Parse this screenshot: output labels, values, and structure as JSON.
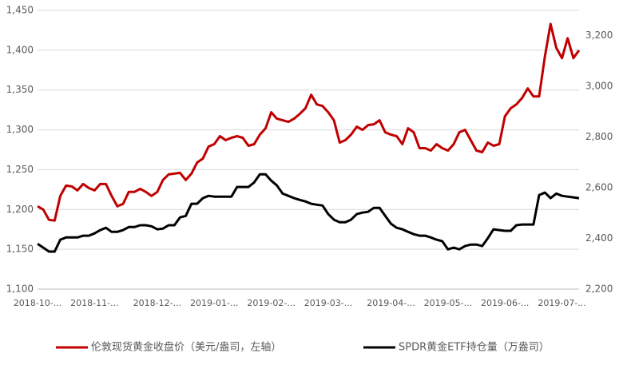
{
  "chart_data": {
    "type": "line",
    "categories": [
      "2018-10-...",
      null,
      null,
      null,
      null,
      null,
      null,
      null,
      null,
      null,
      "2018-11-...",
      null,
      null,
      null,
      null,
      null,
      null,
      null,
      null,
      null,
      null,
      "2018-12-...",
      null,
      null,
      null,
      null,
      null,
      null,
      null,
      null,
      null,
      "2019-01-...",
      null,
      null,
      null,
      null,
      null,
      null,
      null,
      null,
      null,
      "2019-02-...",
      null,
      null,
      null,
      null,
      null,
      null,
      null,
      null,
      null,
      "2019-03-...",
      null,
      null,
      null,
      null,
      null,
      null,
      null,
      null,
      null,
      null,
      "2019-04-...",
      null,
      null,
      null,
      null,
      null,
      null,
      null,
      null,
      null,
      "2019-05-...",
      null,
      null,
      null,
      null,
      null,
      null,
      null,
      null,
      null,
      "2019-06-...",
      null,
      null,
      null,
      null,
      null,
      null,
      null,
      null,
      null,
      "2019-07-...",
      null,
      null,
      null
    ],
    "series": [
      {
        "name": "伦敦现货黄金收盘价（美元/盎司，左轴）",
        "color": "#c00000",
        "values": [
          1204,
          1200,
          1187,
          1186,
          1217,
          1230,
          1229,
          1224,
          1232,
          1227,
          1224,
          1232,
          1232,
          1217,
          1204,
          1207,
          1222,
          1222,
          1226,
          1222,
          1217,
          1222,
          1237,
          1244,
          1245,
          1246,
          1237,
          1245,
          1259,
          1264,
          1279,
          1282,
          1292,
          1287,
          1290,
          1292,
          1290,
          1280,
          1282,
          1294,
          1302,
          1322,
          1314,
          1312,
          1310,
          1314,
          1320,
          1327,
          1344,
          1332,
          1330,
          1322,
          1312,
          1284,
          1287,
          1294,
          1304,
          1300,
          1306,
          1307,
          1312,
          1297,
          1294,
          1292,
          1282,
          1302,
          1297,
          1277,
          1277,
          1274,
          1282,
          1277,
          1274,
          1282,
          1297,
          1300,
          1287,
          1274,
          1272,
          1284,
          1280,
          1282,
          1317,
          1327,
          1332,
          1340,
          1352,
          1342,
          1342,
          1392,
          1433,
          1403,
          1390,
          1415,
          1390,
          1400
        ]
      },
      {
        "name": "SPDR黄金ETF持仓量（万盎司）",
        "color": "#000000",
        "axis": "y2",
        "values": [
          2379,
          2364,
          2348,
          2348,
          2395,
          2404,
          2404,
          2404,
          2411,
          2411,
          2420,
          2433,
          2442,
          2426,
          2426,
          2433,
          2445,
          2445,
          2452,
          2452,
          2448,
          2436,
          2439,
          2452,
          2452,
          2483,
          2489,
          2537,
          2537,
          2559,
          2568,
          2565,
          2565,
          2565,
          2565,
          2603,
          2603,
          2603,
          2621,
          2653,
          2653,
          2628,
          2609,
          2577,
          2568,
          2559,
          2552,
          2546,
          2537,
          2533,
          2530,
          2496,
          2474,
          2464,
          2464,
          2474,
          2496,
          2502,
          2505,
          2521,
          2521,
          2489,
          2458,
          2442,
          2436,
          2426,
          2417,
          2411,
          2411,
          2404,
          2395,
          2389,
          2357,
          2364,
          2357,
          2370,
          2376,
          2376,
          2370,
          2401,
          2436,
          2433,
          2430,
          2430,
          2452,
          2455,
          2455,
          2455,
          2571,
          2581,
          2559,
          2577,
          2568,
          2565,
          2562,
          2559
        ]
      }
    ],
    "ylim": [
      1100,
      1450
    ],
    "yticks": [
      {
        "value": 1100,
        "label": "1,100"
      },
      {
        "value": 1150,
        "label": "1,150"
      },
      {
        "value": 1200,
        "label": "1,200"
      },
      {
        "value": 1250,
        "label": "1,250"
      },
      {
        "value": 1300,
        "label": "1,300"
      },
      {
        "value": 1350,
        "label": "1,350"
      },
      {
        "value": 1400,
        "label": "1,400"
      },
      {
        "value": 1450,
        "label": "1,450"
      }
    ],
    "y2lim": [
      2200,
      3300
    ],
    "y2ticks": [
      {
        "value": 2200,
        "label": "2,200"
      },
      {
        "value": 2400,
        "label": "2,400"
      },
      {
        "value": 2600,
        "label": "2,600"
      },
      {
        "value": 2800,
        "label": "2,800"
      },
      {
        "value": 3000,
        "label": "3,000"
      },
      {
        "value": 3200,
        "label": "3,200"
      }
    ],
    "grid": true,
    "legend": "bottom"
  }
}
